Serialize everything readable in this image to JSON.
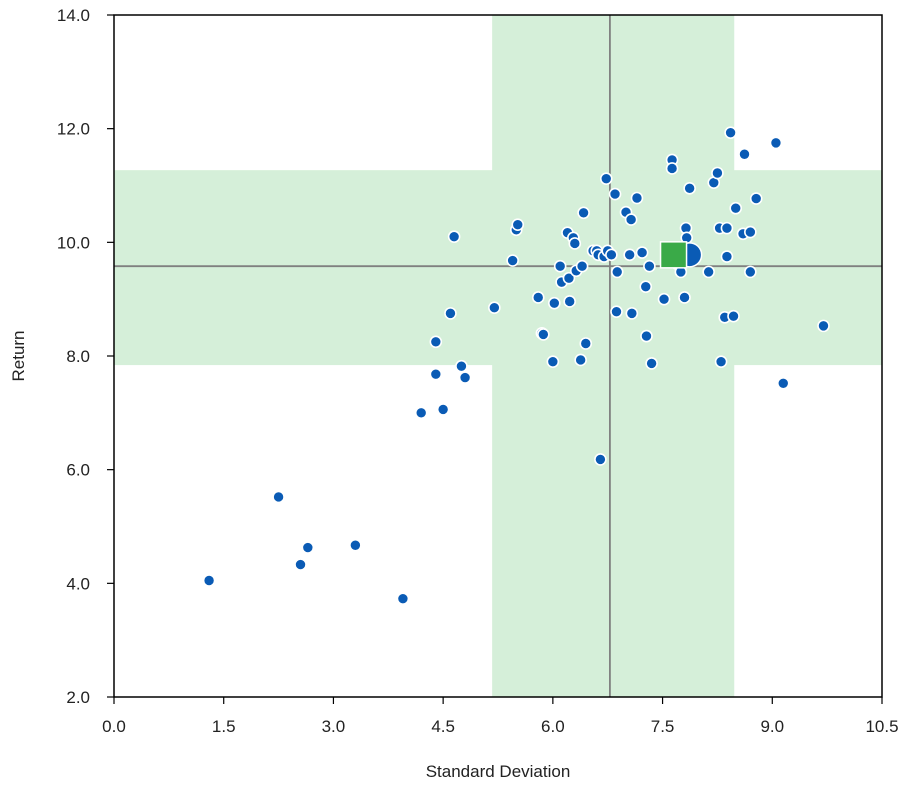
{
  "chart_data": {
    "type": "scatter",
    "xlabel": "Standard Deviation",
    "ylabel": "Return",
    "xlim": [
      0.0,
      10.5
    ],
    "ylim": [
      2.0,
      14.0
    ],
    "x_ticks": [
      "0.0",
      "1.5",
      "3.0",
      "4.5",
      "6.0",
      "7.5",
      "9.0",
      "10.5"
    ],
    "y_ticks": [
      "2.0",
      "4.0",
      "6.0",
      "8.0",
      "10.0",
      "12.0",
      "14.0"
    ],
    "grid": false,
    "band_color": "#d5efd9",
    "reference_line_color": "#808080",
    "band_x_range": [
      5.17,
      8.48
    ],
    "band_y_range": [
      7.84,
      11.27
    ],
    "reference_x": 6.78,
    "reference_y": 9.58,
    "highlight_benchmark": {
      "x": 7.87,
      "y": 9.78,
      "color": "#0a5bb5",
      "marker": "large-circle"
    },
    "highlight_portfolio": {
      "x": 7.65,
      "y": 9.78,
      "color": "#3aaa48",
      "marker": "square"
    },
    "series": [
      {
        "color": "#0a5bb5",
        "points": [
          [
            1.3,
            4.05
          ],
          [
            2.25,
            5.52
          ],
          [
            2.55,
            4.33
          ],
          [
            2.65,
            4.63
          ],
          [
            3.3,
            4.67
          ],
          [
            3.95,
            3.73
          ],
          [
            4.2,
            7.0
          ],
          [
            4.4,
            7.68
          ],
          [
            4.4,
            8.25
          ],
          [
            4.5,
            7.06
          ],
          [
            4.6,
            8.75
          ],
          [
            4.65,
            10.1
          ],
          [
            4.75,
            7.82
          ],
          [
            4.8,
            7.62
          ],
          [
            5.2,
            8.85
          ],
          [
            5.45,
            9.68
          ],
          [
            5.5,
            10.22
          ],
          [
            5.52,
            10.31
          ],
          [
            5.8,
            9.03
          ],
          [
            5.85,
            8.4
          ],
          [
            5.87,
            8.38
          ],
          [
            6.0,
            7.9
          ],
          [
            6.02,
            8.93
          ],
          [
            6.1,
            9.58
          ],
          [
            6.12,
            9.3
          ],
          [
            6.2,
            10.17
          ],
          [
            6.22,
            9.37
          ],
          [
            6.23,
            8.96
          ],
          [
            6.28,
            10.08
          ],
          [
            6.3,
            9.98
          ],
          [
            6.32,
            9.5
          ],
          [
            6.38,
            7.93
          ],
          [
            6.4,
            9.58
          ],
          [
            6.42,
            10.52
          ],
          [
            6.45,
            8.22
          ],
          [
            6.55,
            9.85
          ],
          [
            6.6,
            9.85
          ],
          [
            6.62,
            9.78
          ],
          [
            6.65,
            6.18
          ],
          [
            6.7,
            9.75
          ],
          [
            6.73,
            11.12
          ],
          [
            6.75,
            9.85
          ],
          [
            6.8,
            9.78
          ],
          [
            6.85,
            10.85
          ],
          [
            6.87,
            8.78
          ],
          [
            6.88,
            9.48
          ],
          [
            7.0,
            10.53
          ],
          [
            7.05,
            9.78
          ],
          [
            7.07,
            10.4
          ],
          [
            7.08,
            8.75
          ],
          [
            7.15,
            10.78
          ],
          [
            7.22,
            9.82
          ],
          [
            7.27,
            9.22
          ],
          [
            7.28,
            8.35
          ],
          [
            7.32,
            9.58
          ],
          [
            7.35,
            7.87
          ],
          [
            7.52,
            9.0
          ],
          [
            7.63,
            11.45
          ],
          [
            7.63,
            11.3
          ],
          [
            7.7,
            9.62
          ],
          [
            7.75,
            9.48
          ],
          [
            7.8,
            9.03
          ],
          [
            7.82,
            10.25
          ],
          [
            7.83,
            10.08
          ],
          [
            7.87,
            10.95
          ],
          [
            8.13,
            9.48
          ],
          [
            8.2,
            11.05
          ],
          [
            8.25,
            11.22
          ],
          [
            8.28,
            10.25
          ],
          [
            8.3,
            7.9
          ],
          [
            8.35,
            8.68
          ],
          [
            8.38,
            9.75
          ],
          [
            8.38,
            10.25
          ],
          [
            8.47,
            8.7
          ],
          [
            8.5,
            10.6
          ],
          [
            8.6,
            10.15
          ],
          [
            8.62,
            11.55
          ],
          [
            8.7,
            9.48
          ],
          [
            8.7,
            10.18
          ],
          [
            8.78,
            10.77
          ],
          [
            8.43,
            11.93
          ],
          [
            9.05,
            11.75
          ],
          [
            9.15,
            7.52
          ],
          [
            9.7,
            8.53
          ]
        ]
      }
    ]
  }
}
